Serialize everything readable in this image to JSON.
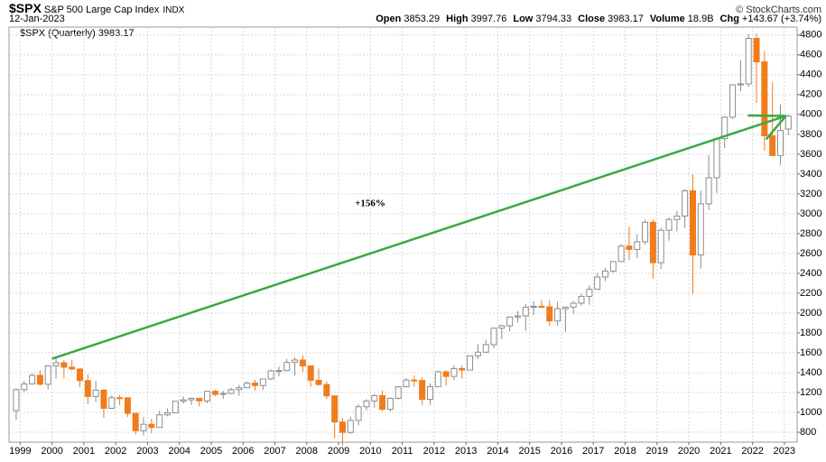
{
  "header": {
    "symbol": "$SPX",
    "name": "S&P 500 Large Cap Index",
    "exchange": "INDX",
    "date": "12-Jan-2023",
    "quote": [
      {
        "label": "Open",
        "value": "3853.29"
      },
      {
        "label": "High",
        "value": "3997.76"
      },
      {
        "label": "Low",
        "value": "3794.33"
      },
      {
        "label": "Close",
        "value": "3983.17"
      },
      {
        "label": "Volume",
        "value": "18.9B"
      },
      {
        "label": "Chg",
        "value": "+143.67 (+3.74%)"
      }
    ],
    "credit": "© StockCharts.com"
  },
  "chart_data": {
    "type": "candlestick",
    "legend": "$SPX (Quarterly) 3983.17",
    "annotation": "+156%",
    "up_color": "#8c8c8c",
    "down_color": "#f07c1c",
    "arrow_color": "#3aa845",
    "grid": true,
    "arrow": {
      "from": [
        2000.0,
        1540
      ],
      "to": [
        2023.05,
        3985
      ],
      "head_from": [
        2021.85,
        3990
      ]
    },
    "xlim": [
      1998.65,
      2023.4
    ],
    "xticks": [
      1999,
      2000,
      2001,
      2002,
      2003,
      2004,
      2005,
      2006,
      2007,
      2008,
      2009,
      2010,
      2011,
      2012,
      2013,
      2014,
      2015,
      2016,
      2017,
      2018,
      2019,
      2020,
      2021,
      2022,
      2023
    ],
    "ylim": [
      700,
      4880
    ],
    "yticks": [
      800,
      1000,
      1200,
      1400,
      1600,
      1800,
      2000,
      2200,
      2400,
      2600,
      2800,
      3000,
      3200,
      3400,
      3600,
      3800,
      4000,
      4200,
      4400,
      4600,
      4800
    ],
    "x": [
      1998.875,
      1999.125,
      1999.375,
      1999.625,
      1999.875,
      2000.125,
      2000.375,
      2000.625,
      2000.875,
      2001.125,
      2001.375,
      2001.625,
      2001.875,
      2002.125,
      2002.375,
      2002.625,
      2002.875,
      2003.125,
      2003.375,
      2003.625,
      2003.875,
      2004.125,
      2004.375,
      2004.625,
      2004.875,
      2005.125,
      2005.375,
      2005.625,
      2005.875,
      2006.125,
      2006.375,
      2006.625,
      2006.875,
      2007.125,
      2007.375,
      2007.625,
      2007.875,
      2008.125,
      2008.375,
      2008.625,
      2008.875,
      2009.125,
      2009.375,
      2009.625,
      2009.875,
      2010.125,
      2010.375,
      2010.625,
      2010.875,
      2011.125,
      2011.375,
      2011.625,
      2011.875,
      2012.125,
      2012.375,
      2012.625,
      2012.875,
      2013.125,
      2013.375,
      2013.625,
      2013.875,
      2014.125,
      2014.375,
      2014.625,
      2014.875,
      2015.125,
      2015.375,
      2015.625,
      2015.875,
      2016.125,
      2016.375,
      2016.625,
      2016.875,
      2017.125,
      2017.375,
      2017.625,
      2017.875,
      2018.125,
      2018.375,
      2018.625,
      2018.875,
      2019.125,
      2019.375,
      2019.625,
      2019.875,
      2020.125,
      2020.375,
      2020.625,
      2020.875,
      2021.125,
      2021.375,
      2021.625,
      2021.875,
      2022.125,
      2022.375,
      2022.625,
      2022.875,
      2023.125
    ],
    "open": [
      1017,
      1229,
      1286,
      1373,
      1283,
      1469,
      1499,
      1455,
      1437,
      1320,
      1160,
      1224,
      1041,
      1148,
      1147,
      990,
      815,
      880,
      848,
      975,
      996,
      1112,
      1126,
      1141,
      1115,
      1212,
      1181,
      1191,
      1229,
      1248,
      1295,
      1270,
      1336,
      1418,
      1421,
      1503,
      1527,
      1468,
      1323,
      1280,
      1166,
      903,
      798,
      919,
      1057,
      1115,
      1169,
      1031,
      1141,
      1258,
      1326,
      1321,
      1131,
      1258,
      1408,
      1362,
      1441,
      1426,
      1569,
      1606,
      1682,
      1848,
      1872,
      1960,
      1972,
      2059,
      2068,
      2063,
      1920,
      2044,
      2060,
      2099,
      2168,
      2239,
      2363,
      2423,
      2519,
      2674,
      2641,
      2718,
      2914,
      2507,
      2834,
      2942,
      2977,
      3231,
      2585,
      3100,
      3363,
      3756,
      3973,
      4298,
      4308,
      4766,
      4530,
      3785,
      3586,
      3853
    ],
    "high": [
      1244,
      1316,
      1389,
      1421,
      1473,
      1553,
      1527,
      1530,
      1437,
      1383,
      1316,
      1234,
      1173,
      1176,
      1147,
      994,
      954,
      935,
      1015,
      1040,
      1112,
      1163,
      1150,
      1141,
      1217,
      1229,
      1219,
      1246,
      1275,
      1310,
      1326,
      1340,
      1431,
      1461,
      1540,
      1555,
      1576,
      1471,
      1440,
      1313,
      1167,
      943,
      956,
      1080,
      1130,
      1180,
      1220,
      1150,
      1263,
      1344,
      1370,
      1356,
      1293,
      1420,
      1422,
      1475,
      1474,
      1570,
      1687,
      1729,
      1849,
      1884,
      1968,
      2019,
      2093,
      2119,
      2135,
      2133,
      2116,
      2044,
      2121,
      2194,
      2278,
      2401,
      2454,
      2519,
      2695,
      2873,
      2791,
      2941,
      2940,
      2860,
      2964,
      3028,
      3247,
      3394,
      3233,
      3588,
      3760,
      3983,
      4300,
      4546,
      4808,
      4818,
      4637,
      4325,
      4100,
      3998
    ],
    "low": [
      923,
      1205,
      1281,
      1268,
      1233,
      1339,
      1339,
      1421,
      1254,
      1081,
      1103,
      945,
      1037,
      1074,
      952,
      776,
      768,
      789,
      847,
      960,
      990,
      1087,
      1076,
      1060,
      1091,
      1163,
      1136,
      1183,
      1168,
      1245,
      1219,
      1224,
      1327,
      1364,
      1416,
      1370,
      1406,
      1257,
      1272,
      1133,
      741,
      667,
      784,
      869,
      1020,
      1044,
      1011,
      1011,
      1131,
      1250,
      1258,
      1074,
      1075,
      1258,
      1267,
      1325,
      1343,
      1426,
      1536,
      1604,
      1646,
      1737,
      1814,
      1904,
      1820,
      1981,
      2048,
      1867,
      1872,
      1810,
      1992,
      2074,
      2084,
      2245,
      2322,
      2406,
      2521,
      2533,
      2553,
      2691,
      2347,
      2444,
      2729,
      2822,
      2856,
      2192,
      2447,
      3038,
      3209,
      3662,
      3953,
      4233,
      4279,
      4115,
      3636,
      3584,
      3491,
      3794
    ],
    "close": [
      1229,
      1286,
      1373,
      1283,
      1469,
      1499,
      1455,
      1437,
      1320,
      1160,
      1224,
      1041,
      1148,
      1147,
      990,
      815,
      880,
      848,
      975,
      996,
      1112,
      1126,
      1141,
      1115,
      1212,
      1181,
      1191,
      1229,
      1248,
      1295,
      1270,
      1336,
      1418,
      1421,
      1503,
      1527,
      1468,
      1323,
      1280,
      1166,
      903,
      798,
      919,
      1057,
      1115,
      1169,
      1031,
      1141,
      1258,
      1326,
      1321,
      1131,
      1258,
      1408,
      1362,
      1441,
      1426,
      1569,
      1606,
      1682,
      1848,
      1872,
      1960,
      1972,
      2059,
      2068,
      2063,
      1920,
      2044,
      2060,
      2099,
      2168,
      2239,
      2363,
      2423,
      2519,
      2674,
      2641,
      2718,
      2914,
      2507,
      2834,
      2942,
      2977,
      3231,
      2585,
      3100,
      3363,
      3756,
      3973,
      4298,
      4308,
      4766,
      4530,
      3785,
      3586,
      3840,
      3983
    ]
  }
}
